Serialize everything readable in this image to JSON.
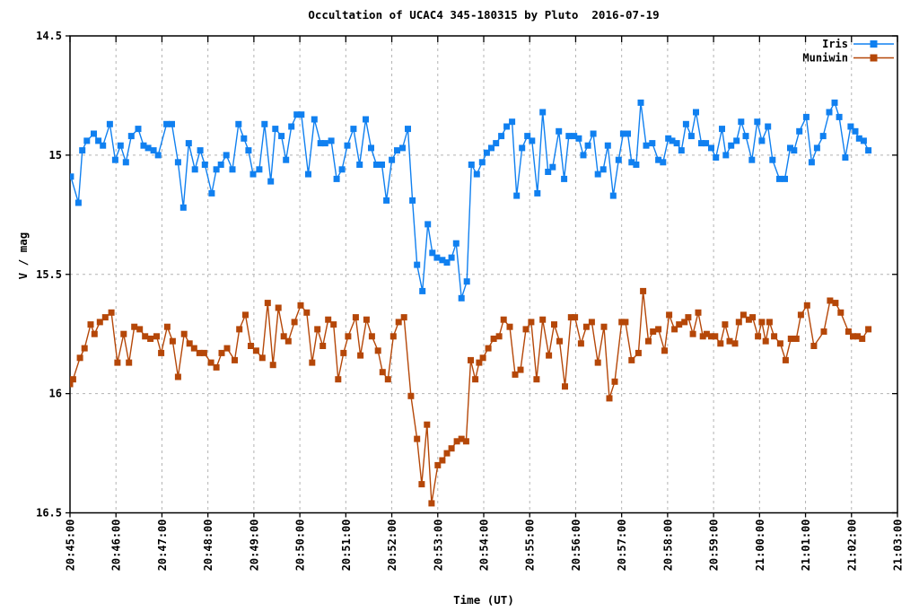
{
  "title": "Occultation of UCAC4 345-180315 by Pluto  2016-07-19",
  "axes": {
    "x_label": "Time (UT)",
    "y_label": "V / mag",
    "x_ticks": [
      "20:45:00",
      "20:46:00",
      "20:47:00",
      "20:48:00",
      "20:49:00",
      "20:50:00",
      "20:51:00",
      "20:52:00",
      "20:53:00",
      "20:54:00",
      "20:55:00",
      "20:56:00",
      "20:57:00",
      "20:58:00",
      "20:59:00",
      "21:00:00",
      "21:01:00",
      "21:02:00",
      "21:03:00"
    ],
    "y_ticks": [
      "14.5",
      "15",
      "15.5",
      "16",
      "16.5"
    ]
  },
  "colors": {
    "iris": "#1080f0",
    "muniwin": "#b54708",
    "grid": "#b3b3b3",
    "border": "#000000",
    "background": "#ffffff"
  },
  "chart_data": {
    "type": "line",
    "title": "Occultation of UCAC4 345-180315 by Pluto  2016-07-19",
    "xlabel": "Time (UT)",
    "ylabel": "V / mag",
    "x_start": "20:45:00",
    "x_end": "21:03:00",
    "x_unit": "seconds after 20:45:00 UT",
    "x_range_seconds": [
      0,
      1080
    ],
    "ylim": [
      16.5,
      14.5
    ],
    "y_axis_inverted": true,
    "grid": "dashed, at every minute and every 0.5 mag",
    "legend_position": "top-right inside plot, no box",
    "marker": "filled square",
    "series": [
      {
        "name": "Iris",
        "color": "#1080f0",
        "points": [
          [
            1,
            15.09
          ],
          [
            11,
            15.2
          ],
          [
            16,
            14.98
          ],
          [
            22,
            14.94
          ],
          [
            31,
            14.91
          ],
          [
            37,
            14.94
          ],
          [
            43,
            14.96
          ],
          [
            52,
            14.87
          ],
          [
            59,
            15.02
          ],
          [
            66,
            14.96
          ],
          [
            73,
            15.03
          ],
          [
            80,
            14.92
          ],
          [
            89,
            14.89
          ],
          [
            96,
            14.96
          ],
          [
            102,
            14.97
          ],
          [
            109,
            14.98
          ],
          [
            115,
            15.0
          ],
          [
            126,
            14.87
          ],
          [
            133,
            14.87
          ],
          [
            141,
            15.03
          ],
          [
            148,
            15.22
          ],
          [
            155,
            14.95
          ],
          [
            163,
            15.06
          ],
          [
            170,
            14.98
          ],
          [
            176,
            15.04
          ],
          [
            185,
            15.16
          ],
          [
            191,
            15.06
          ],
          [
            197,
            15.04
          ],
          [
            204,
            15.0
          ],
          [
            212,
            15.06
          ],
          [
            220,
            14.87
          ],
          [
            227,
            14.93
          ],
          [
            233,
            14.98
          ],
          [
            239,
            15.08
          ],
          [
            247,
            15.06
          ],
          [
            254,
            14.87
          ],
          [
            262,
            15.11
          ],
          [
            268,
            14.89
          ],
          [
            276,
            14.92
          ],
          [
            282,
            15.02
          ],
          [
            289,
            14.88
          ],
          [
            296,
            14.83
          ],
          [
            302,
            14.83
          ],
          [
            311,
            15.08
          ],
          [
            319,
            14.85
          ],
          [
            327,
            14.95
          ],
          [
            333,
            14.95
          ],
          [
            341,
            14.94
          ],
          [
            348,
            15.1
          ],
          [
            355,
            15.06
          ],
          [
            362,
            14.96
          ],
          [
            370,
            14.89
          ],
          [
            378,
            15.04
          ],
          [
            386,
            14.85
          ],
          [
            393,
            14.97
          ],
          [
            400,
            15.04
          ],
          [
            407,
            15.04
          ],
          [
            413,
            15.19
          ],
          [
            420,
            15.02
          ],
          [
            427,
            14.98
          ],
          [
            434,
            14.97
          ],
          [
            441,
            14.89
          ],
          [
            447,
            15.19
          ],
          [
            453,
            15.46
          ],
          [
            460,
            15.57
          ],
          [
            467,
            15.29
          ],
          [
            473,
            15.41
          ],
          [
            479,
            15.43
          ],
          [
            486,
            15.44
          ],
          [
            492,
            15.45
          ],
          [
            498,
            15.43
          ],
          [
            504,
            15.37
          ],
          [
            511,
            15.6
          ],
          [
            518,
            15.53
          ],
          [
            524,
            15.04
          ],
          [
            531,
            15.08
          ],
          [
            538,
            15.03
          ],
          [
            544,
            14.99
          ],
          [
            550,
            14.97
          ],
          [
            556,
            14.95
          ],
          [
            563,
            14.92
          ],
          [
            570,
            14.88
          ],
          [
            577,
            14.86
          ],
          [
            583,
            15.17
          ],
          [
            590,
            14.97
          ],
          [
            597,
            14.92
          ],
          [
            603,
            14.94
          ],
          [
            610,
            15.16
          ],
          [
            617,
            14.82
          ],
          [
            624,
            15.07
          ],
          [
            630,
            15.05
          ],
          [
            638,
            14.9
          ],
          [
            645,
            15.1
          ],
          [
            651,
            14.92
          ],
          [
            658,
            14.92
          ],
          [
            664,
            14.93
          ],
          [
            670,
            15.0
          ],
          [
            676,
            14.96
          ],
          [
            683,
            14.91
          ],
          [
            689,
            15.08
          ],
          [
            696,
            15.06
          ],
          [
            702,
            14.96
          ],
          [
            709,
            15.17
          ],
          [
            716,
            15.02
          ],
          [
            722,
            14.91
          ],
          [
            728,
            14.91
          ],
          [
            733,
            15.03
          ],
          [
            739,
            15.04
          ],
          [
            745,
            14.78
          ],
          [
            752,
            14.96
          ],
          [
            760,
            14.95
          ],
          [
            768,
            15.02
          ],
          [
            774,
            15.03
          ],
          [
            781,
            14.93
          ],
          [
            786,
            14.94
          ],
          [
            792,
            14.95
          ],
          [
            798,
            14.98
          ],
          [
            804,
            14.87
          ],
          [
            811,
            14.92
          ],
          [
            817,
            14.82
          ],
          [
            824,
            14.95
          ],
          [
            830,
            14.95
          ],
          [
            837,
            14.97
          ],
          [
            843,
            15.01
          ],
          [
            851,
            14.89
          ],
          [
            856,
            15.0
          ],
          [
            863,
            14.96
          ],
          [
            870,
            14.94
          ],
          [
            876,
            14.86
          ],
          [
            882,
            14.92
          ],
          [
            890,
            15.02
          ],
          [
            897,
            14.86
          ],
          [
            903,
            14.94
          ],
          [
            911,
            14.88
          ],
          [
            917,
            15.02
          ],
          [
            926,
            15.1
          ],
          [
            933,
            15.1
          ],
          [
            940,
            14.97
          ],
          [
            945,
            14.98
          ],
          [
            952,
            14.9
          ],
          [
            961,
            14.84
          ],
          [
            968,
            15.03
          ],
          [
            975,
            14.97
          ],
          [
            983,
            14.92
          ],
          [
            991,
            14.82
          ],
          [
            998,
            14.78
          ],
          [
            1004,
            14.84
          ],
          [
            1012,
            15.01
          ],
          [
            1019,
            14.88
          ],
          [
            1025,
            14.9
          ],
          [
            1030,
            14.93
          ],
          [
            1036,
            14.94
          ],
          [
            1042,
            14.98
          ]
        ]
      },
      {
        "name": "Muniwin",
        "color": "#b54708",
        "points": [
          [
            0,
            15.96
          ],
          [
            4,
            15.94
          ],
          [
            13,
            15.85
          ],
          [
            19,
            15.81
          ],
          [
            27,
            15.71
          ],
          [
            32,
            15.75
          ],
          [
            39,
            15.7
          ],
          [
            46,
            15.68
          ],
          [
            54,
            15.66
          ],
          [
            62,
            15.87
          ],
          [
            70,
            15.75
          ],
          [
            77,
            15.87
          ],
          [
            84,
            15.72
          ],
          [
            91,
            15.73
          ],
          [
            98,
            15.76
          ],
          [
            105,
            15.77
          ],
          [
            113,
            15.76
          ],
          [
            119,
            15.83
          ],
          [
            127,
            15.72
          ],
          [
            134,
            15.78
          ],
          [
            141,
            15.93
          ],
          [
            149,
            15.75
          ],
          [
            156,
            15.79
          ],
          [
            162,
            15.81
          ],
          [
            169,
            15.83
          ],
          [
            175,
            15.83
          ],
          [
            184,
            15.87
          ],
          [
            191,
            15.89
          ],
          [
            198,
            15.83
          ],
          [
            205,
            15.81
          ],
          [
            215,
            15.86
          ],
          [
            221,
            15.73
          ],
          [
            229,
            15.67
          ],
          [
            236,
            15.8
          ],
          [
            243,
            15.82
          ],
          [
            251,
            15.85
          ],
          [
            258,
            15.62
          ],
          [
            265,
            15.88
          ],
          [
            272,
            15.64
          ],
          [
            279,
            15.76
          ],
          [
            285,
            15.78
          ],
          [
            293,
            15.7
          ],
          [
            301,
            15.63
          ],
          [
            309,
            15.66
          ],
          [
            316,
            15.87
          ],
          [
            323,
            15.73
          ],
          [
            330,
            15.8
          ],
          [
            337,
            15.69
          ],
          [
            344,
            15.71
          ],
          [
            350,
            15.94
          ],
          [
            357,
            15.83
          ],
          [
            363,
            15.76
          ],
          [
            373,
            15.68
          ],
          [
            379,
            15.84
          ],
          [
            387,
            15.69
          ],
          [
            394,
            15.76
          ],
          [
            402,
            15.82
          ],
          [
            408,
            15.91
          ],
          [
            415,
            15.94
          ],
          [
            422,
            15.76
          ],
          [
            429,
            15.7
          ],
          [
            436,
            15.68
          ],
          [
            445,
            16.01
          ],
          [
            453,
            16.19
          ],
          [
            459,
            16.38
          ],
          [
            466,
            16.13
          ],
          [
            472,
            16.46
          ],
          [
            480,
            16.3
          ],
          [
            486,
            16.28
          ],
          [
            492,
            16.25
          ],
          [
            498,
            16.23
          ],
          [
            505,
            16.2
          ],
          [
            511,
            16.19
          ],
          [
            517,
            16.2
          ],
          [
            523,
            15.86
          ],
          [
            529,
            15.94
          ],
          [
            534,
            15.87
          ],
          [
            539,
            15.85
          ],
          [
            546,
            15.81
          ],
          [
            553,
            15.77
          ],
          [
            560,
            15.76
          ],
          [
            566,
            15.69
          ],
          [
            574,
            15.72
          ],
          [
            581,
            15.92
          ],
          [
            588,
            15.9
          ],
          [
            595,
            15.73
          ],
          [
            602,
            15.7
          ],
          [
            609,
            15.94
          ],
          [
            617,
            15.69
          ],
          [
            625,
            15.84
          ],
          [
            632,
            15.71
          ],
          [
            639,
            15.78
          ],
          [
            646,
            15.97
          ],
          [
            654,
            15.68
          ],
          [
            659,
            15.68
          ],
          [
            667,
            15.79
          ],
          [
            674,
            15.72
          ],
          [
            681,
            15.7
          ],
          [
            689,
            15.87
          ],
          [
            697,
            15.72
          ],
          [
            704,
            16.02
          ],
          [
            711,
            15.95
          ],
          [
            720,
            15.7
          ],
          [
            725,
            15.7
          ],
          [
            733,
            15.86
          ],
          [
            742,
            15.83
          ],
          [
            748,
            15.57
          ],
          [
            755,
            15.78
          ],
          [
            761,
            15.74
          ],
          [
            768,
            15.73
          ],
          [
            776,
            15.82
          ],
          [
            782,
            15.67
          ],
          [
            789,
            15.73
          ],
          [
            795,
            15.71
          ],
          [
            802,
            15.7
          ],
          [
            807,
            15.68
          ],
          [
            813,
            15.75
          ],
          [
            820,
            15.66
          ],
          [
            826,
            15.76
          ],
          [
            831,
            15.75
          ],
          [
            837,
            15.76
          ],
          [
            842,
            15.76
          ],
          [
            849,
            15.79
          ],
          [
            855,
            15.71
          ],
          [
            861,
            15.78
          ],
          [
            868,
            15.79
          ],
          [
            873,
            15.7
          ],
          [
            879,
            15.67
          ],
          [
            886,
            15.69
          ],
          [
            891,
            15.68
          ],
          [
            898,
            15.76
          ],
          [
            903,
            15.7
          ],
          [
            908,
            15.78
          ],
          [
            913,
            15.7
          ],
          [
            919,
            15.76
          ],
          [
            927,
            15.79
          ],
          [
            934,
            15.86
          ],
          [
            941,
            15.77
          ],
          [
            948,
            15.77
          ],
          [
            954,
            15.67
          ],
          [
            962,
            15.63
          ],
          [
            971,
            15.8
          ],
          [
            984,
            15.74
          ],
          [
            992,
            15.61
          ],
          [
            999,
            15.62
          ],
          [
            1006,
            15.66
          ],
          [
            1016,
            15.74
          ],
          [
            1022,
            15.76
          ],
          [
            1028,
            15.76
          ],
          [
            1034,
            15.77
          ],
          [
            1042,
            15.73
          ]
        ]
      }
    ]
  },
  "legend": [
    {
      "label": "Iris",
      "color": "#1080f0"
    },
    {
      "label": "Muniwin",
      "color": "#b54708"
    }
  ]
}
